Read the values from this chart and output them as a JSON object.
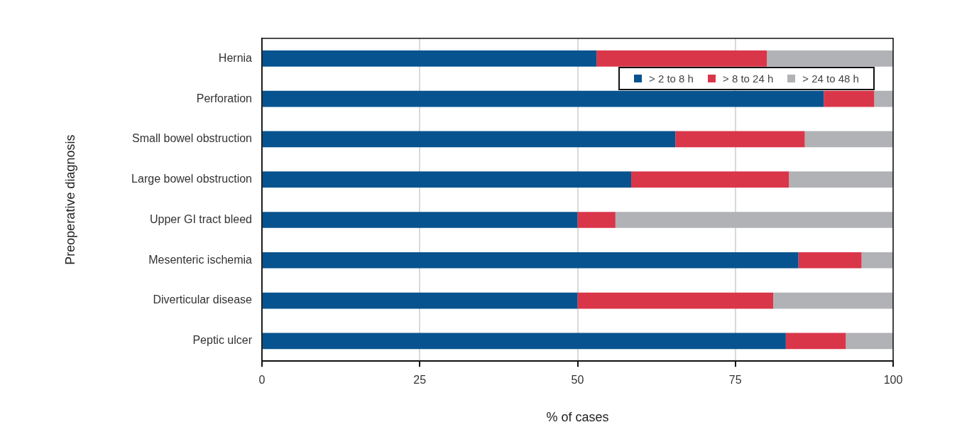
{
  "chart_data": {
    "type": "bar",
    "orientation": "horizontal",
    "stacked": true,
    "xlabel": "% of cases",
    "ylabel": "Preoperative diagnosis",
    "categories": [
      "Hernia",
      "Perforation",
      "Small bowel obstruction",
      "Large bowel obstruction",
      "Upper GI tract bleed",
      "Mesenteric ischemia",
      "Diverticular disease",
      "Peptic ulcer"
    ],
    "series": [
      {
        "name": "> 2 to 8 h",
        "color": "#07538f",
        "values": [
          53,
          89,
          65.5,
          58.5,
          50,
          85,
          50,
          83
        ]
      },
      {
        "name": "> 8 to 24 h",
        "color": "#da364a",
        "values": [
          27,
          8,
          20.5,
          25,
          6,
          10,
          31,
          9.5
        ]
      },
      {
        "name": "> 24 to 48 h",
        "color": "#b1b2b5",
        "values": [
          20,
          3,
          14,
          16.5,
          44,
          5,
          19,
          7.5
        ]
      }
    ],
    "xlim": [
      0,
      100
    ],
    "xticks": [
      0,
      25,
      50,
      75,
      100
    ],
    "grid": "x",
    "legend": "top right"
  }
}
